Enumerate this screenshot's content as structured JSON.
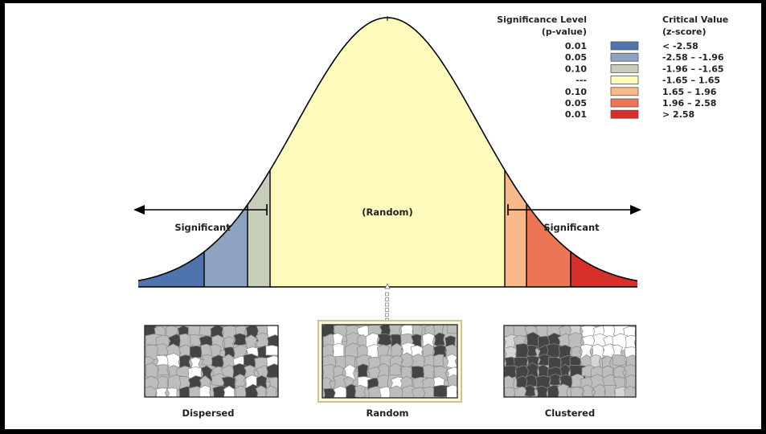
{
  "diagram": {
    "center_label": "(Random)",
    "left_label": "Significant",
    "right_label": "Significant",
    "colors": {
      "background": "#ffffff",
      "frame": "#000000",
      "curve_fill_center": "#fffbbd",
      "line": "#000000",
      "random_box_border": "#c8c49a",
      "random_box_bg": "#fffbd8"
    }
  },
  "legend": {
    "significance_header_line1": "Significance Level",
    "significance_header_line2": "(p-value)",
    "critical_header_line1": "Critical Value",
    "critical_header_line2": "(z-score)",
    "rows": [
      {
        "p": "0.01",
        "z": "< -2.58",
        "color": "#4f73ad"
      },
      {
        "p": "0.05",
        "z": "-2.58 – -1.96",
        "color": "#8ea3c2"
      },
      {
        "p": "0.10",
        "z": "-1.96 – -1.65",
        "color": "#c6cdb9"
      },
      {
        "p": "---",
        "z": "-1.65 – 1.65",
        "color": "#fffbbd"
      },
      {
        "p": "0.10",
        "z": "1.65 – 1.96",
        "color": "#f7b98a"
      },
      {
        "p": "0.05",
        "z": "1.96 – 2.58",
        "color": "#ec7555"
      },
      {
        "p": "0.01",
        "z": "> 2.58",
        "color": "#d7302a"
      }
    ]
  },
  "maps": [
    {
      "label": "Dispersed",
      "pattern": "dispersed"
    },
    {
      "label": "Random",
      "pattern": "random"
    },
    {
      "label": "Clustered",
      "pattern": "clustered"
    }
  ]
}
